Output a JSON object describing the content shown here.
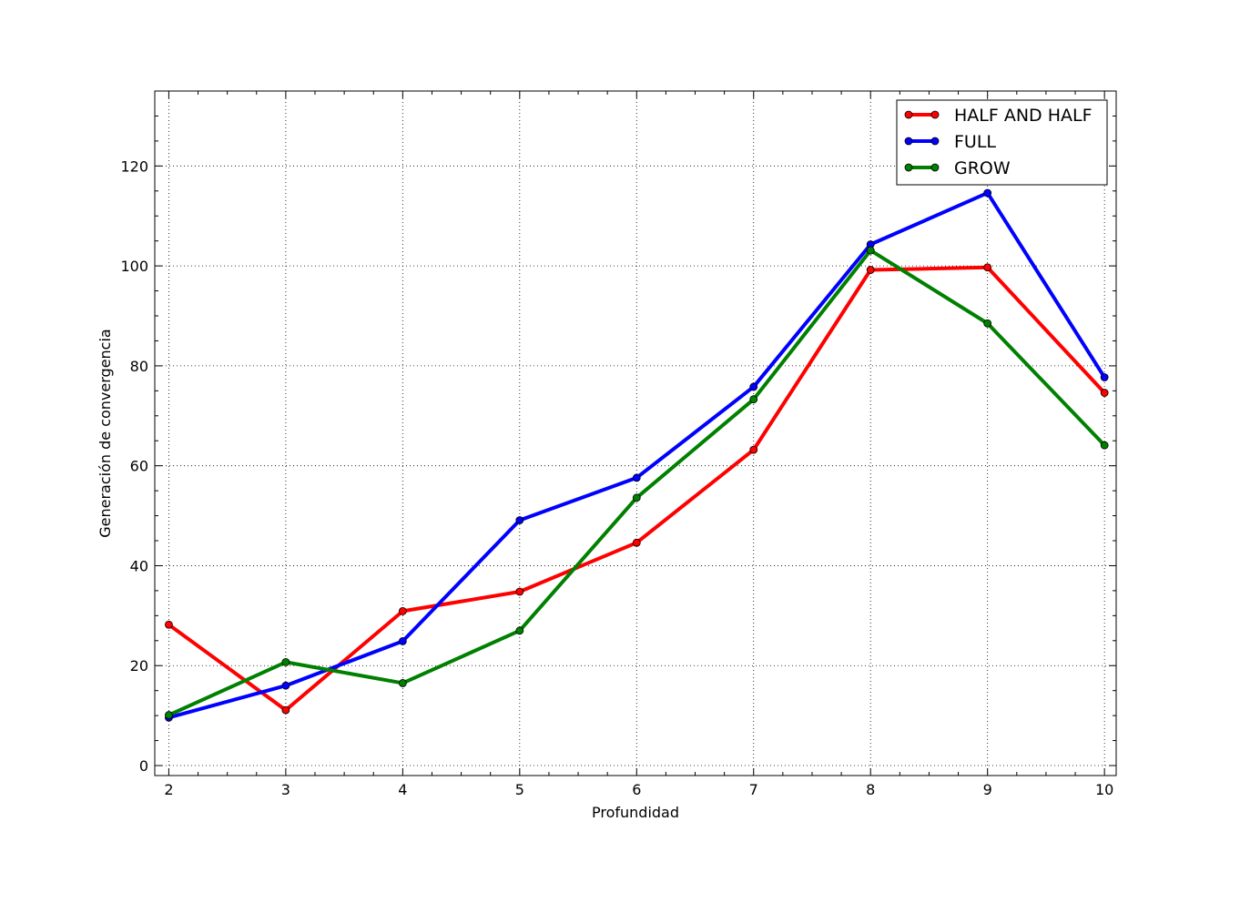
{
  "chart_data": {
    "type": "line",
    "title": "",
    "xlabel": "Profundidad",
    "ylabel": "Generación de convergencia",
    "x": [
      2,
      3,
      4,
      5,
      6,
      7,
      8,
      9,
      10
    ],
    "xlim": [
      1.88,
      10.1
    ],
    "ylim": [
      -2,
      135
    ],
    "xticks": [
      "2",
      "3",
      "4",
      "5",
      "6",
      "7",
      "8",
      "9",
      "10"
    ],
    "yticks": [
      "0",
      "20",
      "40",
      "60",
      "80",
      "100",
      "120"
    ],
    "grid": true,
    "legend_position": "top-right",
    "series": [
      {
        "name": "HALF AND HALF",
        "color": "#ff0000",
        "marker": "circle",
        "values": [
          28.2,
          11.1,
          30.9,
          34.8,
          44.6,
          63.2,
          99.2,
          99.7,
          74.6
        ]
      },
      {
        "name": "FULL",
        "color": "#0000ff",
        "marker": "circle",
        "values": [
          9.6,
          16.0,
          24.9,
          49.1,
          57.6,
          75.8,
          104.3,
          114.6,
          77.7
        ]
      },
      {
        "name": "GROW",
        "color": "#008000",
        "marker": "circle",
        "values": [
          10.1,
          20.7,
          16.5,
          27.0,
          53.6,
          73.3,
          103.1,
          88.5,
          64.1
        ]
      }
    ]
  }
}
